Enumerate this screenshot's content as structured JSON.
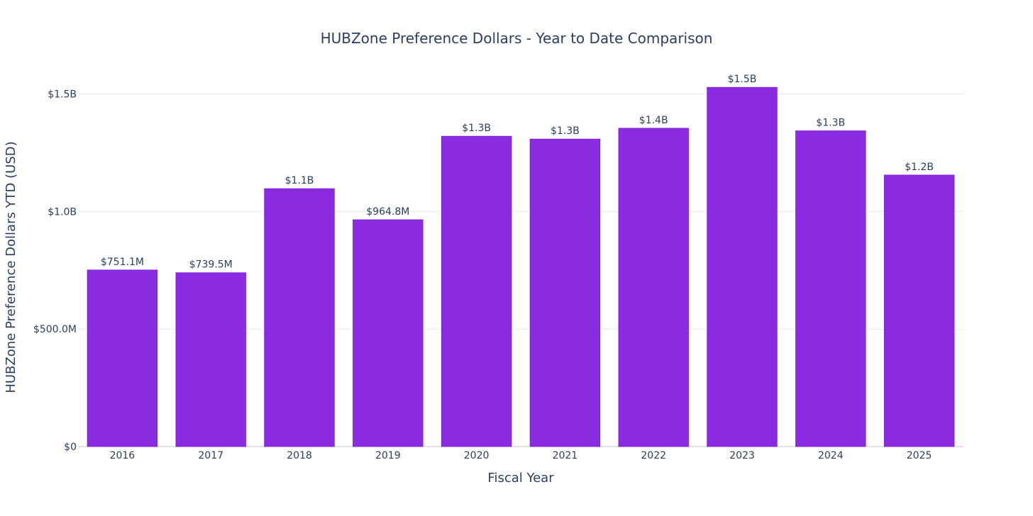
{
  "chart_data": {
    "type": "bar",
    "title": "HUBZone Preference Dollars - Year to Date Comparison",
    "xlabel": "Fiscal Year",
    "ylabel": "HUBZone Preference Dollars YTD (USD)",
    "categories": [
      "2016",
      "2017",
      "2018",
      "2019",
      "2020",
      "2021",
      "2022",
      "2023",
      "2024",
      "2025"
    ],
    "values": [
      751100000,
      739500000,
      1097000000,
      964800000,
      1320000000,
      1308000000,
      1354000000,
      1528000000,
      1343000000,
      1155000000
    ],
    "value_labels": [
      "$751.1M",
      "$739.5M",
      "$1.1B",
      "$964.8M",
      "$1.3B",
      "$1.3B",
      "$1.4B",
      "$1.5B",
      "$1.3B",
      "$1.2B"
    ],
    "y_ticks": [
      0,
      500000000,
      1000000000,
      1500000000
    ],
    "y_tick_labels": [
      "$0",
      "$500.0M",
      "$1.0B",
      "$1.5B"
    ],
    "ylim": [
      0,
      1610000000
    ],
    "bar_color": "#8a2be2",
    "grid": true
  }
}
